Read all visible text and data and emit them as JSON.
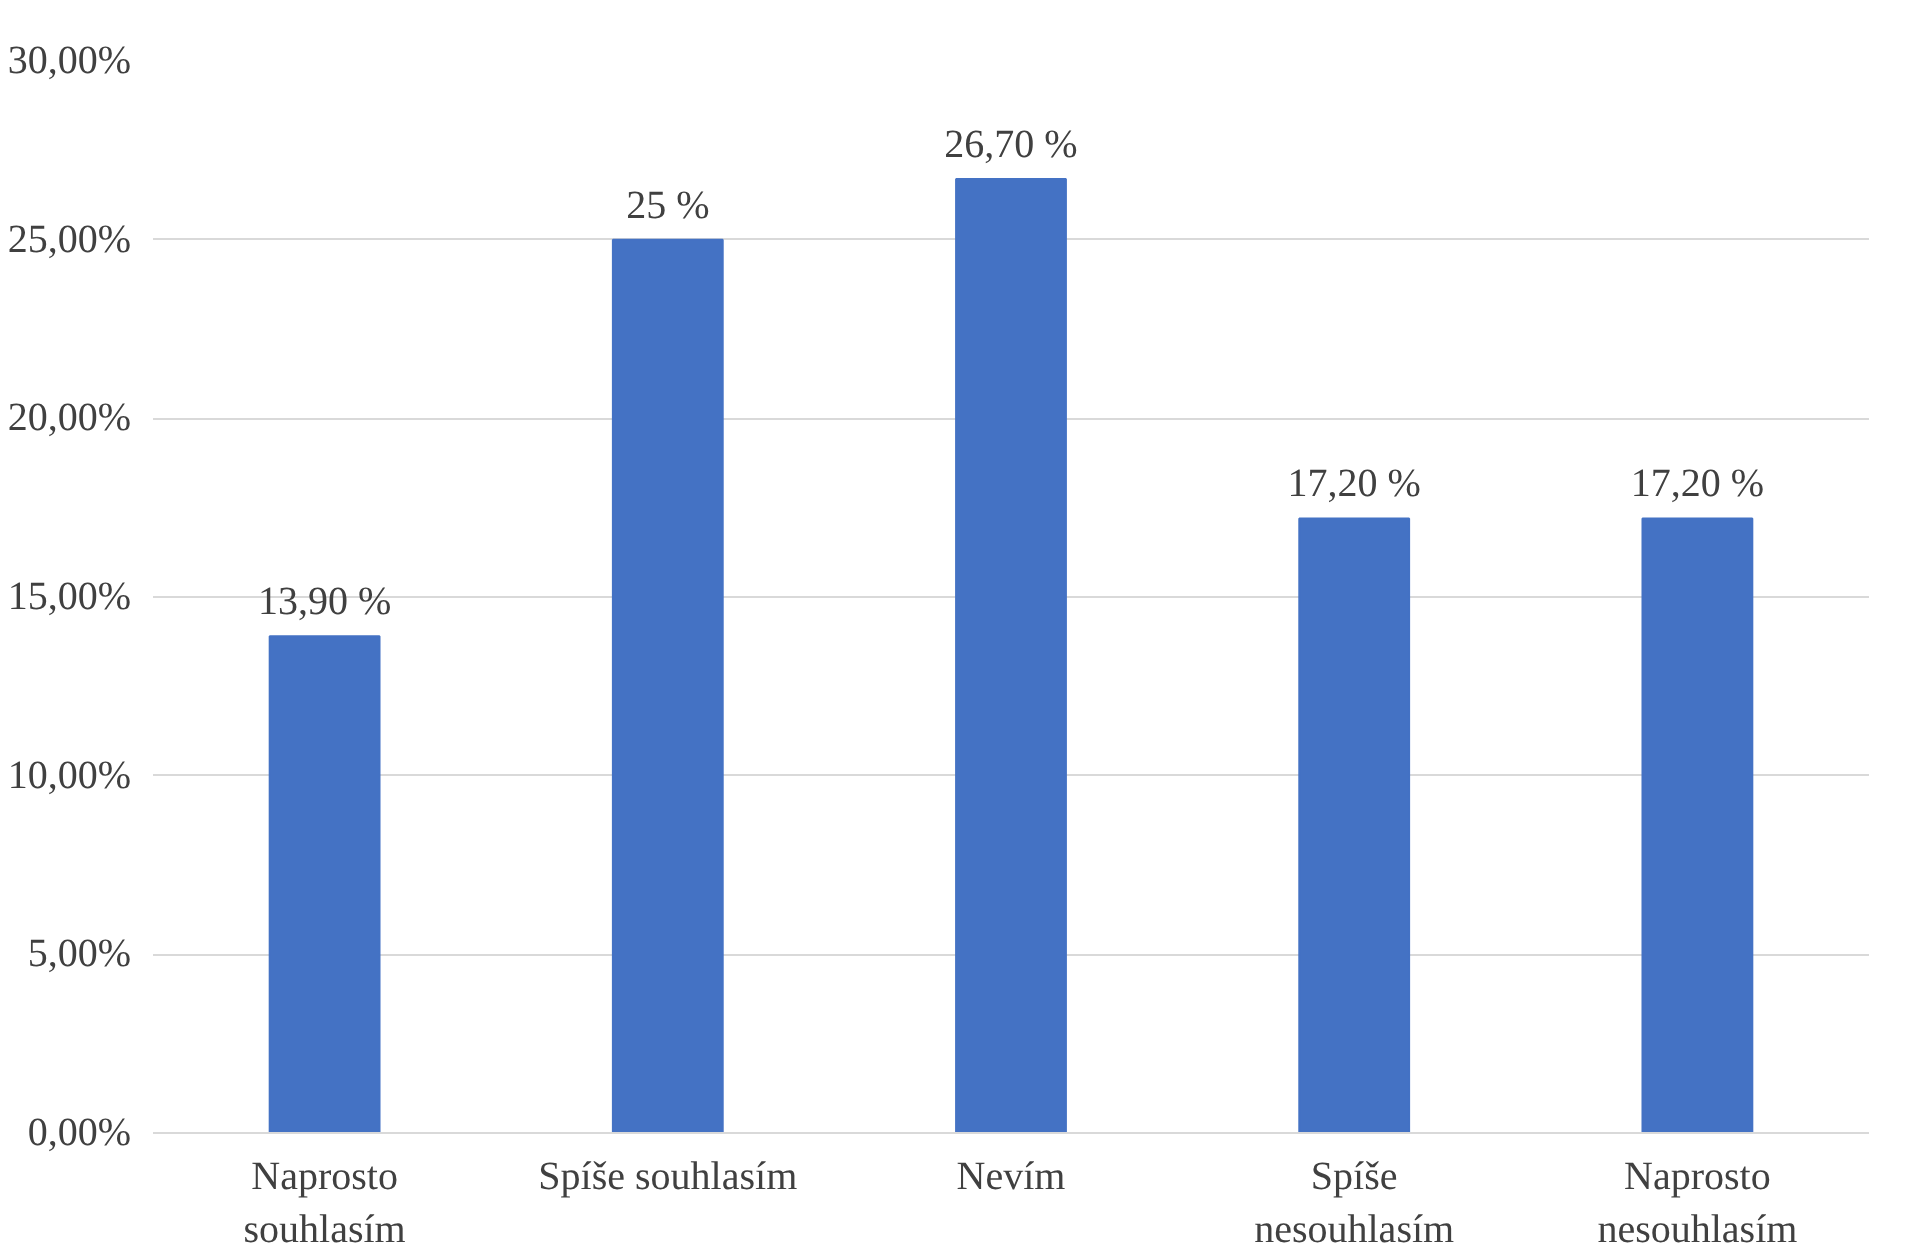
{
  "chart_data": {
    "type": "bar",
    "categories": [
      "Naprosto souhlasím",
      "Spíše souhlasím",
      "Nevím",
      "Spíše nesouhlasím",
      "Naprosto nesouhlasím"
    ],
    "values": [
      13.9,
      25,
      26.7,
      17.2,
      17.2
    ],
    "value_labels": [
      "13,90 %",
      "25 %",
      "26,70 %",
      "17,20 %",
      "17,20 %"
    ],
    "color": "#4472c4",
    "ylim": [
      0,
      30
    ],
    "yticks": [
      {
        "value": 0,
        "label": "0,00%"
      },
      {
        "value": 5,
        "label": "5,00%"
      },
      {
        "value": 10,
        "label": "10,00%"
      },
      {
        "value": 15,
        "label": "15,00%"
      },
      {
        "value": 20,
        "label": "20,00%"
      },
      {
        "value": 25,
        "label": "25,00%"
      },
      {
        "value": 30,
        "label": "30,00%"
      }
    ],
    "grid": "y"
  }
}
